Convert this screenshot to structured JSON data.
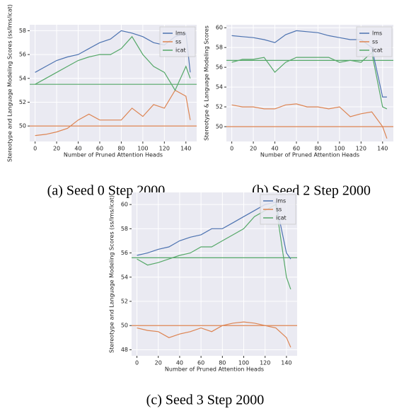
{
  "chart_data": [
    {
      "type": "line",
      "caption": "(a) Seed 0 Step 2000",
      "xlabel": "Number of Pruned Attention Heads",
      "ylabel": "Stereotype and Language Modeling Scores (ss/lms/icat)",
      "x": [
        0,
        10,
        20,
        30,
        40,
        50,
        60,
        70,
        80,
        90,
        100,
        110,
        120,
        130,
        140,
        144
      ],
      "series": [
        {
          "name": "lms",
          "color": "#4c72b0",
          "values": [
            54.5,
            55,
            55.5,
            55.8,
            56,
            56.5,
            57,
            57.3,
            58,
            57.8,
            57.5,
            57,
            56.8,
            57.5,
            57.8,
            54.5
          ]
        },
        {
          "name": "ss",
          "color": "#dd8452",
          "values": [
            49.2,
            49.3,
            49.5,
            49.8,
            50.5,
            51,
            50.5,
            50.5,
            50.5,
            51.5,
            50.8,
            51.8,
            51.5,
            53,
            52.5,
            50.5
          ]
        },
        {
          "name": "icat",
          "color": "#55a868",
          "values": [
            53.5,
            54,
            54.5,
            55,
            55.5,
            55.8,
            56,
            56,
            56.5,
            57.5,
            56,
            55,
            54.5,
            53,
            55,
            54
          ]
        }
      ],
      "reference_lines": [
        {
          "value": 53.5,
          "color": "#55a868"
        },
        {
          "value": 50,
          "color": "#dd8452"
        }
      ],
      "xlim": [
        -5,
        150
      ],
      "xticks": [
        0,
        20,
        40,
        60,
        80,
        100,
        120,
        140
      ],
      "ylim": [
        48.7,
        58.5
      ],
      "yticks": [
        50,
        52,
        54,
        56,
        58
      ],
      "grid": true,
      "legend": "upper-right"
    },
    {
      "type": "line",
      "caption": "(b) Seed 2 Step 2000",
      "xlabel": "Number of Pruned Attention Heads",
      "ylabel": "Stereotype & Language Modeling Scores",
      "x": [
        0,
        10,
        20,
        30,
        40,
        50,
        60,
        70,
        80,
        90,
        100,
        110,
        120,
        130,
        140,
        144
      ],
      "series": [
        {
          "name": "lms",
          "color": "#4c72b0",
          "values": [
            59.2,
            59.1,
            59,
            58.8,
            58.5,
            59.3,
            59.7,
            59.6,
            59.5,
            59.2,
            59,
            58.8,
            58.8,
            58,
            53,
            53
          ]
        },
        {
          "name": "ss",
          "color": "#dd8452",
          "values": [
            52.2,
            52,
            52,
            51.8,
            51.8,
            52.2,
            52.3,
            52,
            52,
            51.8,
            52,
            51,
            51.3,
            51.5,
            50,
            48.8
          ]
        },
        {
          "name": "icat",
          "color": "#55a868",
          "values": [
            56.5,
            56.8,
            56.8,
            57,
            55.5,
            56.5,
            57,
            57,
            57,
            57,
            56.5,
            56.7,
            56.5,
            57.5,
            52,
            51.8
          ]
        }
      ],
      "reference_lines": [
        {
          "value": 56.7,
          "color": "#55a868"
        },
        {
          "value": 50,
          "color": "#dd8452"
        }
      ],
      "xlim": [
        -5,
        150
      ],
      "xticks": [
        0,
        20,
        40,
        60,
        80,
        100,
        120,
        140
      ],
      "ylim": [
        48.5,
        60.3
      ],
      "yticks": [
        50,
        52,
        54,
        56,
        58,
        60
      ],
      "grid": true,
      "legend": "upper-right"
    },
    {
      "type": "line",
      "caption": "(c) Seed 3 Step 2000",
      "xlabel": "Number of Pruned Attention Heads",
      "ylabel": "Stereotype and Language Modeling Scores (ss/lms/icat)",
      "x": [
        0,
        10,
        20,
        30,
        40,
        50,
        60,
        70,
        80,
        90,
        100,
        110,
        120,
        130,
        140,
        144
      ],
      "series": [
        {
          "name": "lms",
          "color": "#4c72b0",
          "values": [
            55.8,
            56,
            56.3,
            56.5,
            57,
            57.3,
            57.5,
            58,
            58,
            58.5,
            59,
            59.5,
            60,
            60.2,
            56,
            55.5
          ]
        },
        {
          "name": "ss",
          "color": "#dd8452",
          "values": [
            49.8,
            49.6,
            49.5,
            49,
            49.3,
            49.5,
            49.8,
            49.5,
            50,
            50.2,
            50.3,
            50.2,
            50,
            49.8,
            49,
            48.2
          ]
        },
        {
          "name": "icat",
          "color": "#55a868",
          "values": [
            55.5,
            55,
            55.2,
            55.5,
            55.8,
            56,
            56.5,
            56.5,
            57,
            57.5,
            58,
            59,
            59.5,
            60,
            54,
            53
          ]
        }
      ],
      "reference_lines": [
        {
          "value": 55.6,
          "color": "#55a868"
        },
        {
          "value": 50,
          "color": "#dd8452"
        }
      ],
      "xlim": [
        -5,
        150
      ],
      "xticks": [
        0,
        20,
        40,
        60,
        80,
        100,
        120,
        140
      ],
      "ylim": [
        47.5,
        61
      ],
      "yticks": [
        48,
        50,
        52,
        54,
        56,
        58,
        60
      ],
      "grid": true,
      "legend": "upper-right"
    }
  ]
}
